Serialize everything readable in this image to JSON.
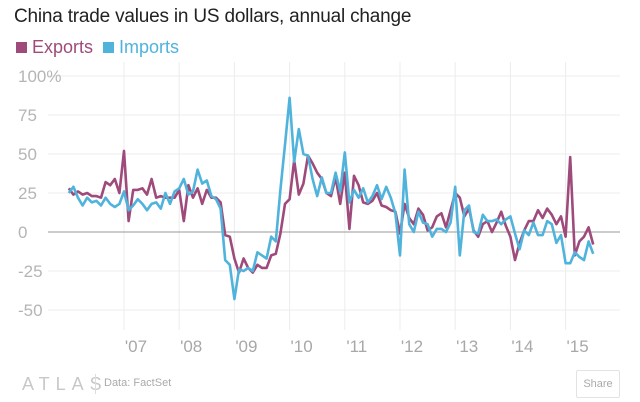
{
  "chart_data": {
    "type": "line",
    "title": "China trade values in US dollars, annual change",
    "xlabel": "",
    "ylabel": "",
    "ylim": [
      -50,
      100
    ],
    "yticks": [
      100,
      75,
      50,
      25,
      0,
      -25,
      -50
    ],
    "ytick_labels": [
      "100%",
      "75",
      "50",
      "25",
      "0",
      "-25",
      "-50"
    ],
    "x_start": "2006-01",
    "x_end": "2015-07",
    "x_frequency": "monthly",
    "xtick_labels": [
      "'07",
      "'08",
      "'09",
      "'10",
      "'11",
      "'12",
      "'13",
      "'14",
      "'15"
    ],
    "grid": true,
    "legend_placement": "top-left",
    "series": [
      {
        "name": "Exports",
        "color": "#9e4a7b",
        "values": [
          28,
          24,
          26,
          24,
          25,
          23,
          23,
          22,
          32,
          30,
          34,
          25,
          52,
          7,
          27,
          27,
          28,
          24,
          34,
          22,
          23,
          22,
          22,
          22,
          27,
          7,
          30,
          22,
          28,
          18,
          27,
          22,
          22,
          19,
          -2,
          -3,
          -17,
          -26,
          -17,
          -23,
          -26,
          -21,
          -23,
          -23,
          -15,
          -14,
          -1,
          18,
          21,
          46,
          24,
          31,
          49,
          44,
          38,
          34,
          25,
          23,
          35,
          18,
          38,
          2,
          36,
          30,
          19,
          18,
          20,
          25,
          17,
          16,
          14,
          13,
          -1,
          18,
          9,
          5,
          15,
          11,
          1,
          3,
          10,
          12,
          3,
          14,
          25,
          22,
          10,
          15,
          1,
          -3,
          5,
          7,
          0,
          6,
          13,
          4,
          -3,
          -18,
          -7,
          1,
          7,
          7,
          14,
          9,
          15,
          11,
          5,
          10,
          -3,
          48,
          -15,
          -6,
          -3,
          3,
          -8
        ]
      },
      {
        "name": "Imports",
        "color": "#4fb3dc",
        "values": [
          25,
          29,
          22,
          17,
          22,
          19,
          20,
          17,
          22,
          18,
          16,
          18,
          26,
          14,
          17,
          21,
          18,
          14,
          18,
          19,
          15,
          25,
          18,
          26,
          28,
          34,
          24,
          26,
          40,
          31,
          33,
          23,
          21,
          15,
          -18,
          -21,
          -43,
          -24,
          -25,
          -23,
          -25,
          -13,
          -15,
          -17,
          -3,
          -6,
          27,
          56,
          86,
          45,
          66,
          50,
          49,
          34,
          23,
          35,
          25,
          25,
          38,
          26,
          51,
          19,
          27,
          22,
          28,
          19,
          23,
          30,
          21,
          29,
          22,
          12,
          -15,
          40,
          5,
          0,
          13,
          6,
          5,
          -3,
          2,
          2,
          0,
          6,
          29,
          -15,
          14,
          17,
          0,
          -1,
          11,
          7,
          7,
          8,
          5,
          8,
          10,
          -1,
          -11,
          1,
          -2,
          6,
          -2,
          -2,
          7,
          5,
          -7,
          -2,
          -20,
          -20,
          -13,
          -16,
          -18,
          -6,
          -14
        ]
      }
    ]
  },
  "footer": {
    "brand": "ATLAS",
    "source": "Data: FactSet",
    "share_label": "Share"
  }
}
